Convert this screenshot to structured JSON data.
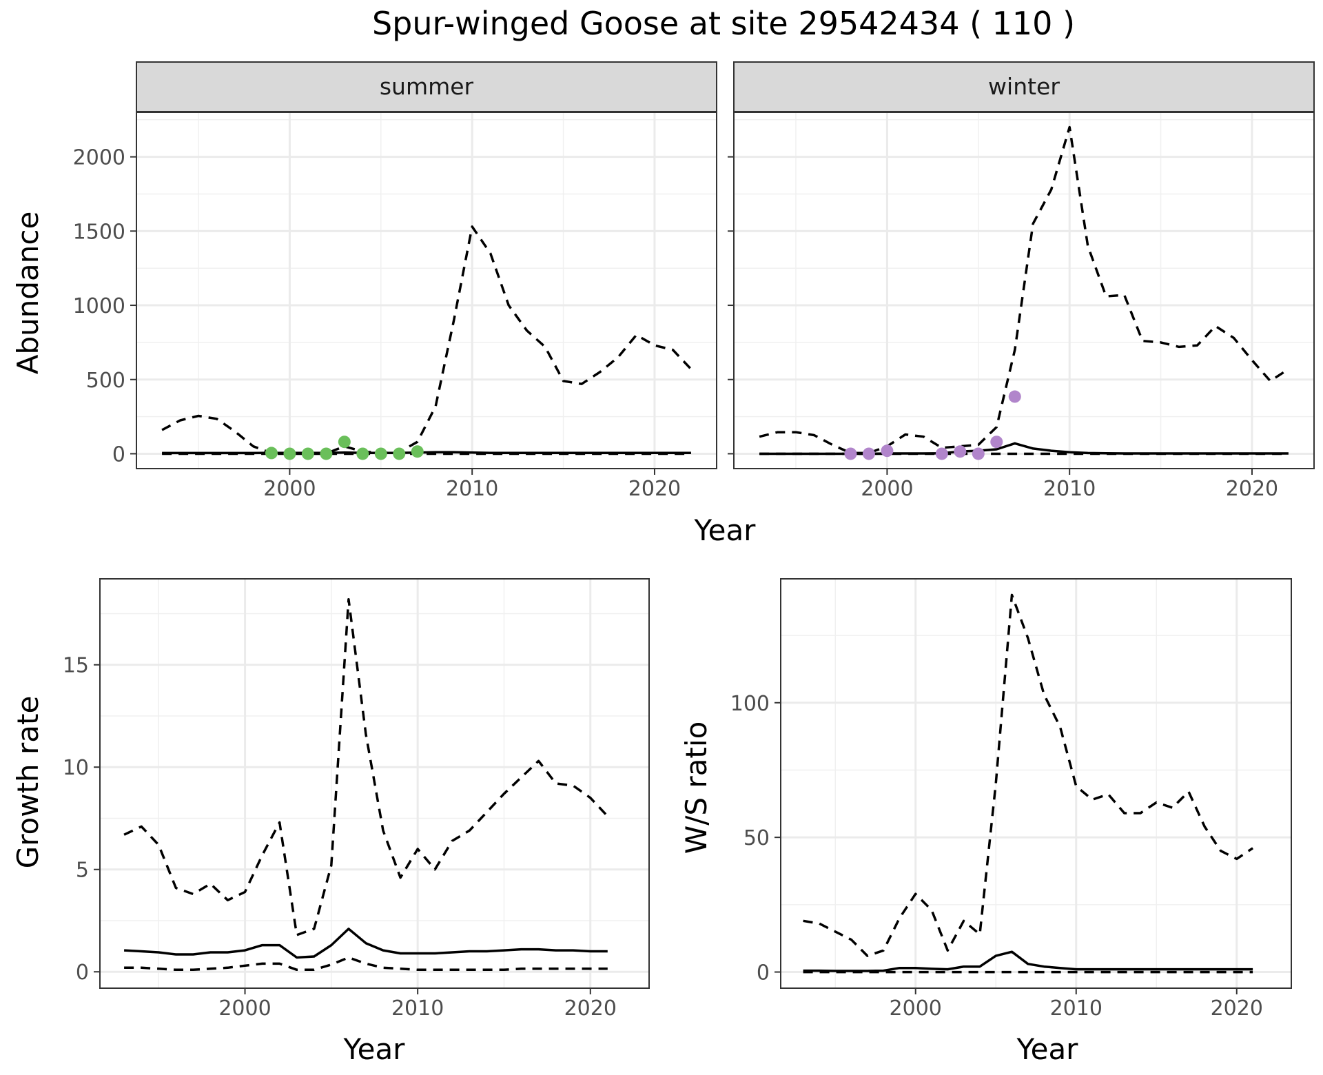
{
  "figure": {
    "title": "Spur-winged Goose at site 29542434 ( 110 )"
  },
  "chart_data": [
    {
      "type": "line",
      "panel": "summer",
      "strip_label": "summer",
      "xlabel": "Year",
      "ylabel": "Abundance",
      "xlim": [
        1991.6,
        2023.4
      ],
      "ylim": [
        -100,
        2300
      ],
      "xticks": [
        2000,
        2010,
        2020
      ],
      "yticks": [
        0,
        500,
        1000,
        1500,
        2000
      ],
      "grid": true,
      "series": [
        {
          "style": "solid",
          "x": [
            1993,
            1994,
            1995,
            1996,
            1997,
            1998,
            1999,
            2000,
            2001,
            2002,
            2003,
            2004,
            2005,
            2006,
            2007,
            2008,
            2009,
            2010,
            2011,
            2012,
            2013,
            2014,
            2015,
            2016,
            2017,
            2018,
            2019,
            2020,
            2021,
            2022
          ],
          "y": [
            5,
            5,
            5,
            5,
            5,
            5,
            6,
            6,
            6,
            6,
            8,
            6,
            6,
            6,
            8,
            10,
            10,
            8,
            6,
            6,
            6,
            6,
            6,
            6,
            6,
            6,
            6,
            6,
            6,
            6
          ]
        },
        {
          "style": "dashed",
          "x": [
            1993,
            1994,
            1995,
            1996,
            1997,
            1998,
            1999,
            2000,
            2001,
            2002,
            2003,
            2004,
            2005,
            2006,
            2007,
            2008,
            2009,
            2010,
            2011,
            2012,
            2013,
            2014,
            2015,
            2016,
            2017,
            2018,
            2019,
            2020,
            2021,
            2022
          ],
          "y": [
            160,
            225,
            255,
            235,
            150,
            50,
            5,
            2,
            2,
            2,
            50,
            15,
            5,
            10,
            80,
            320,
            900,
            1530,
            1350,
            1000,
            830,
            720,
            490,
            470,
            550,
            650,
            800,
            730,
            700,
            570
          ]
        },
        {
          "style": "dashed",
          "x": [
            1993,
            2022
          ],
          "y": [
            0,
            0
          ]
        }
      ],
      "points": {
        "color": "#6abf5a",
        "x": [
          1999,
          2000,
          2001,
          2002,
          2003,
          2004,
          2005,
          2006,
          2007
        ],
        "y": [
          5,
          0,
          0,
          0,
          80,
          0,
          0,
          0,
          15
        ]
      }
    },
    {
      "type": "line",
      "panel": "winter",
      "strip_label": "winter",
      "xlabel": "Year",
      "ylabel": "Abundance",
      "xlim": [
        1991.6,
        2023.4
      ],
      "ylim": [
        -100,
        2300
      ],
      "xticks": [
        2000,
        2010,
        2020
      ],
      "yticks": [
        0,
        500,
        1000,
        1500,
        2000
      ],
      "grid": true,
      "series": [
        {
          "style": "solid",
          "x": [
            1993,
            1994,
            1995,
            1996,
            1997,
            1998,
            1999,
            2000,
            2001,
            2002,
            2003,
            2004,
            2005,
            2006,
            2007,
            2008,
            2009,
            2010,
            2011,
            2012,
            2013,
            2014,
            2015,
            2016,
            2017,
            2018,
            2019,
            2020,
            2021,
            2022
          ],
          "y": [
            0,
            0,
            0,
            0,
            0,
            0,
            0,
            2,
            2,
            2,
            3,
            15,
            20,
            30,
            70,
            35,
            20,
            10,
            5,
            3,
            2,
            2,
            2,
            2,
            2,
            2,
            2,
            2,
            2,
            2
          ]
        },
        {
          "style": "dashed",
          "x": [
            1993,
            1994,
            1995,
            1996,
            1997,
            1998,
            1999,
            2000,
            2001,
            2002,
            2003,
            2004,
            2005,
            2006,
            2007,
            2008,
            2009,
            2010,
            2011,
            2012,
            2013,
            2014,
            2015,
            2016,
            2017,
            2018,
            2019,
            2020,
            2021,
            2022
          ],
          "y": [
            115,
            145,
            145,
            125,
            60,
            5,
            5,
            50,
            130,
            115,
            40,
            50,
            60,
            180,
            700,
            1550,
            1780,
            2200,
            1400,
            1060,
            1070,
            760,
            750,
            720,
            730,
            860,
            780,
            630,
            490,
            570
          ]
        },
        {
          "style": "dashed",
          "x": [
            1993,
            2022
          ],
          "y": [
            0,
            0
          ]
        }
      ],
      "points": {
        "color": "#b185cb",
        "x": [
          1998,
          1999,
          2000,
          2003,
          2004,
          2005,
          2006,
          2007
        ],
        "y": [
          0,
          0,
          20,
          0,
          15,
          0,
          80,
          385
        ]
      }
    },
    {
      "type": "line",
      "panel": "growth",
      "xlabel": "Year",
      "ylabel": "Growth rate",
      "xlim": [
        1991.6,
        2023.4
      ],
      "ylim": [
        -0.8,
        19.2
      ],
      "xticks": [
        2000,
        2010,
        2020
      ],
      "yticks": [
        0,
        5,
        10,
        15
      ],
      "grid": true,
      "series": [
        {
          "style": "solid",
          "x": [
            1993,
            1994,
            1995,
            1996,
            1997,
            1998,
            1999,
            2000,
            2001,
            2002,
            2003,
            2004,
            2005,
            2006,
            2007,
            2008,
            2009,
            2010,
            2011,
            2012,
            2013,
            2014,
            2015,
            2016,
            2017,
            2018,
            2019,
            2020,
            2021
          ],
          "y": [
            1.05,
            1.0,
            0.95,
            0.85,
            0.85,
            0.95,
            0.95,
            1.05,
            1.3,
            1.3,
            0.7,
            0.75,
            1.3,
            2.1,
            1.4,
            1.05,
            0.9,
            0.9,
            0.9,
            0.95,
            1.0,
            1.0,
            1.05,
            1.1,
            1.1,
            1.05,
            1.05,
            1.0,
            1.0
          ]
        },
        {
          "style": "dashed",
          "x": [
            1993,
            1994,
            1995,
            1996,
            1997,
            1998,
            1999,
            2000,
            2001,
            2002,
            2003,
            2004,
            2005,
            2006,
            2007,
            2008,
            2009,
            2010,
            2011,
            2012,
            2013,
            2014,
            2015,
            2016,
            2017,
            2018,
            2019,
            2020,
            2021
          ],
          "y": [
            6.7,
            7.1,
            6.2,
            4.1,
            3.8,
            4.3,
            3.5,
            3.9,
            5.7,
            7.3,
            1.8,
            2.1,
            5.2,
            18.2,
            11.6,
            6.9,
            4.6,
            6.0,
            5.0,
            6.4,
            6.9,
            7.8,
            8.7,
            9.5,
            10.3,
            9.2,
            9.1,
            8.5,
            7.6
          ]
        },
        {
          "style": "dashed",
          "x": [
            1993,
            1994,
            1995,
            1996,
            1997,
            1998,
            1999,
            2000,
            2001,
            2002,
            2003,
            2004,
            2005,
            2006,
            2007,
            2008,
            2009,
            2010,
            2011,
            2012,
            2013,
            2014,
            2015,
            2016,
            2017,
            2018,
            2019,
            2020,
            2021
          ],
          "y": [
            0.2,
            0.2,
            0.15,
            0.1,
            0.1,
            0.15,
            0.2,
            0.3,
            0.4,
            0.4,
            0.1,
            0.1,
            0.35,
            0.7,
            0.4,
            0.2,
            0.15,
            0.1,
            0.1,
            0.1,
            0.1,
            0.1,
            0.1,
            0.15,
            0.15,
            0.15,
            0.15,
            0.15,
            0.15
          ]
        }
      ]
    },
    {
      "type": "line",
      "panel": "ws",
      "xlabel": "Year",
      "ylabel": "W/S ratio",
      "xlim": [
        1991.6,
        2023.4
      ],
      "ylim": [
        -6,
        146
      ],
      "xticks": [
        2000,
        2010,
        2020
      ],
      "yticks": [
        0,
        50,
        100
      ],
      "grid": true,
      "series": [
        {
          "style": "solid",
          "x": [
            1993,
            1994,
            1995,
            1996,
            1997,
            1998,
            1999,
            2000,
            2001,
            2002,
            2003,
            2004,
            2005,
            2006,
            2007,
            2008,
            2009,
            2010,
            2011,
            2012,
            2013,
            2014,
            2015,
            2016,
            2017,
            2018,
            2019,
            2020,
            2021
          ],
          "y": [
            0.5,
            0.5,
            0.4,
            0.4,
            0.4,
            0.5,
            1.5,
            1.5,
            1.2,
            1.0,
            2.0,
            2.0,
            6.0,
            7.5,
            3.0,
            2.0,
            1.5,
            1.0,
            1.0,
            1.0,
            1.0,
            1.0,
            1.0,
            1.0,
            1.0,
            1.0,
            1.0,
            1.0,
            1.0
          ]
        },
        {
          "style": "dashed",
          "x": [
            1993,
            1994,
            1995,
            1996,
            1997,
            1998,
            1999,
            2000,
            2001,
            2002,
            2003,
            2004,
            2005,
            2006,
            2007,
            2008,
            2009,
            2010,
            2011,
            2012,
            2013,
            2014,
            2015,
            2016,
            2017,
            2018,
            2019,
            2020,
            2021
          ],
          "y": [
            19,
            18,
            15,
            12,
            6,
            8,
            20,
            29,
            23,
            8,
            19,
            14,
            70,
            140,
            124,
            103,
            91,
            69,
            64,
            66,
            59,
            59,
            63,
            61,
            67,
            54,
            45,
            42,
            46
          ]
        },
        {
          "style": "dashed",
          "x": [
            1993,
            2021
          ],
          "y": [
            0,
            0
          ]
        }
      ]
    }
  ]
}
